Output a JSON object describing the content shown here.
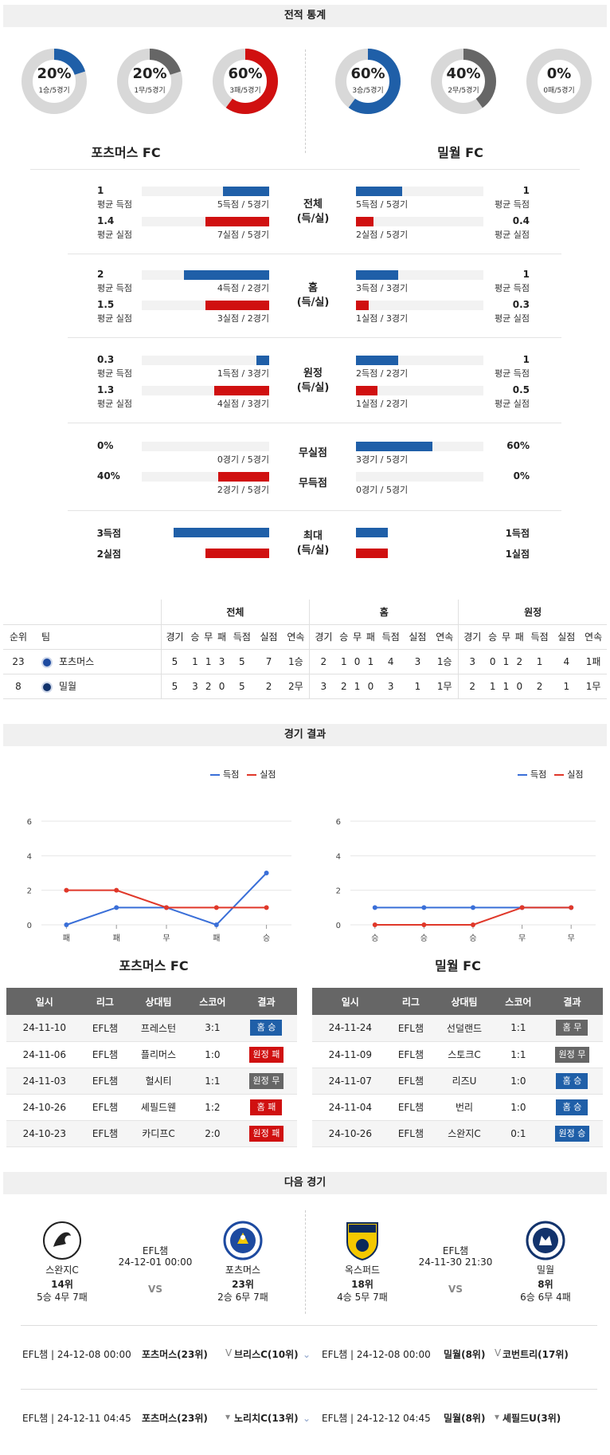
{
  "sections": {
    "stats": "전적 통계",
    "results": "경기 결과",
    "next": "다음 경기"
  },
  "donuts": [
    {
      "pct": "20%",
      "sub": "1승/5경기",
      "value": 0.2,
      "color": "#1f5fa8"
    },
    {
      "pct": "20%",
      "sub": "1무/5경기",
      "value": 0.2,
      "color": "#666666"
    },
    {
      "pct": "60%",
      "sub": "3패/5경기",
      "value": 0.6,
      "color": "#d01010"
    },
    {
      "pct": "60%",
      "sub": "3승/5경기",
      "value": 0.6,
      "color": "#1f5fa8"
    },
    {
      "pct": "40%",
      "sub": "2무/5경기",
      "value": 0.4,
      "color": "#666666"
    },
    {
      "pct": "0%",
      "sub": "0패/5경기",
      "value": 0.0,
      "color": "#d01010"
    }
  ],
  "teams": {
    "home": "포츠머스 FC",
    "away": "밀월 FC"
  },
  "groups": [
    {
      "label": "전체\n(득/실)",
      "home": [
        {
          "num": "1",
          "lbl": "평균 득점",
          "cap": "5득점 / 5경기",
          "frac": 0.36
        },
        {
          "num": "1.4",
          "lbl": "평균 실점",
          "cap": "7실점 / 5경기",
          "frac": 0.5
        }
      ],
      "away": [
        {
          "num": "1",
          "lbl": "평균 득점",
          "cap": "5득점 / 5경기",
          "frac": 0.36
        },
        {
          "num": "0.4",
          "lbl": "평균 실점",
          "cap": "2실점 / 5경기",
          "frac": 0.14
        }
      ]
    },
    {
      "label": "홈\n(득/실)",
      "home": [
        {
          "num": "2",
          "lbl": "평균 득점",
          "cap": "4득점 / 2경기",
          "frac": 0.67
        },
        {
          "num": "1.5",
          "lbl": "평균 실점",
          "cap": "3실점 / 2경기",
          "frac": 0.5
        }
      ],
      "away": [
        {
          "num": "1",
          "lbl": "평균 득점",
          "cap": "3득점 / 3경기",
          "frac": 0.33
        },
        {
          "num": "0.3",
          "lbl": "평균 실점",
          "cap": "1실점 / 3경기",
          "frac": 0.1
        }
      ]
    },
    {
      "label": "원정\n(득/실)",
      "home": [
        {
          "num": "0.3",
          "lbl": "평균 득점",
          "cap": "1득점 / 3경기",
          "frac": 0.1
        },
        {
          "num": "1.3",
          "lbl": "평균 실점",
          "cap": "4실점 / 3경기",
          "frac": 0.43
        }
      ],
      "away": [
        {
          "num": "1",
          "lbl": "평균 득점",
          "cap": "2득점 / 2경기",
          "frac": 0.33
        },
        {
          "num": "0.5",
          "lbl": "평균 실점",
          "cap": "1실점 / 2경기",
          "frac": 0.17
        }
      ]
    }
  ],
  "clean": {
    "label1": "무실점",
    "label2": "무득점",
    "home": [
      {
        "num": "0%",
        "cap": "0경기 / 5경기",
        "frac": 0.0
      },
      {
        "num": "40%",
        "cap": "2경기 / 5경기",
        "frac": 0.4
      }
    ],
    "away": [
      {
        "num": "60%",
        "cap": "3경기 / 5경기",
        "frac": 0.6
      },
      {
        "num": "0%",
        "cap": "0경기 / 5경기",
        "frac": 0.0
      }
    ]
  },
  "max": {
    "label": "최대\n(득/실)",
    "home": [
      {
        "num": "3득점",
        "frac": 0.75
      },
      {
        "num": "2실점",
        "frac": 0.5
      }
    ],
    "away": [
      {
        "num": "1득점",
        "frac": 0.25
      },
      {
        "num": "1실점",
        "frac": 0.25
      }
    ]
  },
  "standings": {
    "groups": [
      "전체",
      "홈",
      "원정"
    ],
    "cols": [
      "경기",
      "승",
      "무",
      "패",
      "득점",
      "실점",
      "연속"
    ],
    "rank_label": "순위",
    "team_label": "팀",
    "rows": [
      {
        "rank": "23",
        "team": "포츠머스",
        "all": [
          "5",
          "1",
          "1",
          "3",
          "5",
          "7",
          "1승"
        ],
        "home": [
          "2",
          "1",
          "0",
          "1",
          "4",
          "3",
          "1승"
        ],
        "away": [
          "3",
          "0",
          "1",
          "2",
          "1",
          "4",
          "1패"
        ]
      },
      {
        "rank": "8",
        "team": "밀월",
        "all": [
          "5",
          "3",
          "2",
          "0",
          "5",
          "2",
          "2무"
        ],
        "home": [
          "3",
          "2",
          "1",
          "0",
          "3",
          "1",
          "1무"
        ],
        "away": [
          "2",
          "1",
          "1",
          "0",
          "2",
          "1",
          "1무"
        ]
      }
    ]
  },
  "chart_data": [
    {
      "type": "line",
      "title": "포츠머스 FC",
      "categories": [
        "패",
        "패",
        "무",
        "패",
        "승"
      ],
      "ylim": [
        0,
        6
      ],
      "yticks": [
        0,
        2,
        4,
        6
      ],
      "series": [
        {
          "name": "득점",
          "color": "#3a6fd8",
          "values": [
            0,
            1,
            1,
            0,
            3
          ]
        },
        {
          "name": "실점",
          "color": "#e0382a",
          "values": [
            2,
            2,
            1,
            1,
            1
          ]
        }
      ]
    },
    {
      "type": "line",
      "title": "밀월 FC",
      "categories": [
        "승",
        "승",
        "승",
        "무",
        "무"
      ],
      "ylim": [
        0,
        6
      ],
      "yticks": [
        0,
        2,
        4,
        6
      ],
      "series": [
        {
          "name": "득점",
          "color": "#3a6fd8",
          "values": [
            1,
            1,
            1,
            1,
            1
          ]
        },
        {
          "name": "실점",
          "color": "#e0382a",
          "values": [
            0,
            0,
            0,
            1,
            1
          ]
        }
      ]
    }
  ],
  "results": {
    "headers": [
      "일시",
      "리그",
      "상대팀",
      "스코어",
      "결과"
    ],
    "home": [
      {
        "date": "24-11-10",
        "league": "EFL챔",
        "opp": "프레스턴",
        "score": "3:1",
        "res": "홈 승",
        "cls": "b-blue"
      },
      {
        "date": "24-11-06",
        "league": "EFL챔",
        "opp": "플리머스",
        "score": "1:0",
        "res": "원정 패",
        "cls": "b-red"
      },
      {
        "date": "24-11-03",
        "league": "EFL챔",
        "opp": "헐시티",
        "score": "1:1",
        "res": "원정 무",
        "cls": "b-gray"
      },
      {
        "date": "24-10-26",
        "league": "EFL챔",
        "opp": "셰필드웬",
        "score": "1:2",
        "res": "홈 패",
        "cls": "b-red"
      },
      {
        "date": "24-10-23",
        "league": "EFL챔",
        "opp": "카디프C",
        "score": "2:0",
        "res": "원정 패",
        "cls": "b-red"
      }
    ],
    "away": [
      {
        "date": "24-11-24",
        "league": "EFL챔",
        "opp": "선덜랜드",
        "score": "1:1",
        "res": "홈 무",
        "cls": "b-gray"
      },
      {
        "date": "24-11-09",
        "league": "EFL챔",
        "opp": "스토크C",
        "score": "1:1",
        "res": "원정 무",
        "cls": "b-gray"
      },
      {
        "date": "24-11-07",
        "league": "EFL챔",
        "opp": "리즈U",
        "score": "1:0",
        "res": "홈 승",
        "cls": "b-blue"
      },
      {
        "date": "24-11-04",
        "league": "EFL챔",
        "opp": "번리",
        "score": "1:0",
        "res": "홈 승",
        "cls": "b-blue"
      },
      {
        "date": "24-10-26",
        "league": "EFL챔",
        "opp": "스완지C",
        "score": "0:1",
        "res": "원정 승",
        "cls": "b-blue"
      }
    ]
  },
  "next": {
    "left": {
      "league": "EFL챔",
      "datetime": "24-12-01 00:00",
      "vs": "VS",
      "t1": {
        "name": "스완지C",
        "rank": "14위",
        "rec": "5승 4무 7패"
      },
      "t2": {
        "name": "포츠머스",
        "rank": "23위",
        "rec": "2승 6무 7패"
      }
    },
    "right": {
      "league": "EFL챔",
      "datetime": "24-11-30 21:30",
      "vs": "VS",
      "t1": {
        "name": "옥스퍼드",
        "rank": "18위",
        "rec": "4승 5무 7패"
      },
      "t2": {
        "name": "밀월",
        "rank": "8위",
        "rec": "6승 6무 4패"
      }
    }
  },
  "upcoming": [
    {
      "l": "EFL챔 | 24-12-08 00:00",
      "lm": "포츠머스(23위)",
      "lo": "브리스C(10위)",
      "r": "EFL챔 | 24-12-08 00:00",
      "rm": "밀월(8위)",
      "ro": "코번트리(17위)"
    },
    {
      "l": "EFL챔 | 24-12-11 04:45",
      "lm": "포츠머스(23위)",
      "lo": "노리치C(13위)",
      "r": "EFL챔 | 24-12-12 04:45",
      "rm": "밀월(8위)",
      "ro": "셰필드U(3위)"
    }
  ]
}
